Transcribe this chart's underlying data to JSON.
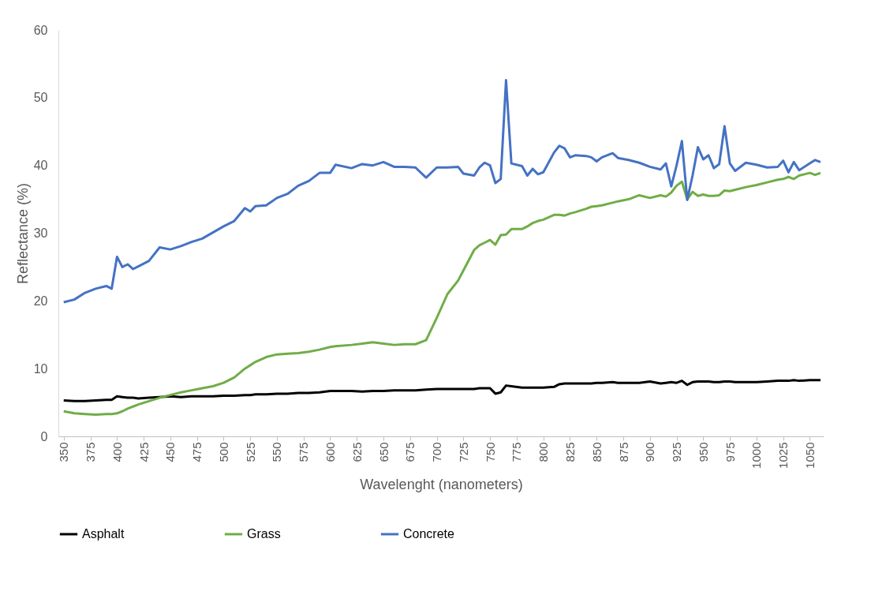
{
  "chart_data": {
    "type": "line",
    "xlabel": "Wavelenght (nanometers)",
    "ylabel": "Reflectance (%)",
    "x": [
      350,
      360,
      370,
      380,
      390,
      395,
      400,
      405,
      410,
      415,
      420,
      430,
      440,
      450,
      460,
      470,
      480,
      490,
      500,
      510,
      520,
      525,
      530,
      540,
      550,
      560,
      570,
      580,
      590,
      600,
      605,
      620,
      630,
      640,
      650,
      660,
      670,
      680,
      690,
      700,
      710,
      720,
      725,
      735,
      740,
      745,
      750,
      755,
      760,
      765,
      770,
      780,
      785,
      790,
      795,
      800,
      810,
      815,
      820,
      825,
      830,
      840,
      845,
      850,
      855,
      865,
      870,
      880,
      890,
      900,
      910,
      915,
      920,
      925,
      930,
      935,
      940,
      945,
      950,
      955,
      960,
      965,
      970,
      975,
      980,
      990,
      1000,
      1010,
      1020,
      1025,
      1030,
      1035,
      1040,
      1050,
      1055,
      1060
    ],
    "series": [
      {
        "name": "Asphalt",
        "color": "#000000",
        "values": [
          5.3,
          5.2,
          5.2,
          5.3,
          5.4,
          5.4,
          5.9,
          5.8,
          5.7,
          5.7,
          5.6,
          5.7,
          5.8,
          5.9,
          5.8,
          5.9,
          5.9,
          5.9,
          6,
          6,
          6.1,
          6.1,
          6.2,
          6.2,
          6.3,
          6.3,
          6.4,
          6.4,
          6.5,
          6.7,
          6.7,
          6.7,
          6.6,
          6.7,
          6.7,
          6.8,
          6.8,
          6.8,
          6.9,
          7,
          7,
          7,
          7,
          7,
          7.1,
          7.1,
          7.1,
          6.3,
          6.5,
          7.5,
          7.4,
          7.2,
          7.2,
          7.2,
          7.2,
          7.2,
          7.3,
          7.7,
          7.8,
          7.8,
          7.8,
          7.8,
          7.8,
          7.9,
          7.9,
          8,
          7.9,
          7.9,
          7.9,
          8.1,
          7.8,
          7.9,
          8,
          7.9,
          8.2,
          7.6,
          8,
          8.1,
          8.1,
          8.1,
          8,
          8,
          8.1,
          8.1,
          8,
          8,
          8,
          8.1,
          8.2,
          8.2,
          8.2,
          8.3,
          8.2,
          8.3,
          8.3,
          8.3
        ]
      },
      {
        "name": "Grass",
        "color": "#70ad47",
        "values": [
          3.7,
          3.4,
          3.3,
          3.2,
          3.3,
          3.3,
          3.4,
          3.7,
          4.1,
          4.4,
          4.7,
          5.2,
          5.7,
          6.1,
          6.5,
          6.8,
          7.1,
          7.4,
          7.9,
          8.7,
          10,
          10.5,
          11,
          11.7,
          12.1,
          12.2,
          12.3,
          12.5,
          12.8,
          13.2,
          13.3,
          13.5,
          13.7,
          13.9,
          13.7,
          13.5,
          13.6,
          13.6,
          14.2,
          17.5,
          21,
          23,
          24.5,
          27.5,
          28.2,
          28.6,
          29,
          28.3,
          29.7,
          29.8,
          30.6,
          30.6,
          31,
          31.5,
          31.8,
          32,
          32.7,
          32.7,
          32.6,
          32.9,
          33.1,
          33.6,
          33.9,
          34,
          34.1,
          34.5,
          34.7,
          35,
          35.6,
          35.2,
          35.6,
          35.4,
          36,
          37,
          37.6,
          35,
          36.1,
          35.5,
          35.7,
          35.5,
          35.5,
          35.6,
          36.3,
          36.2,
          36.4,
          36.8,
          37.1,
          37.5,
          37.9,
          38,
          38.3,
          38,
          38.5,
          38.9,
          38.6,
          38.9
        ]
      },
      {
        "name": "Concrete",
        "color": "#4472c4",
        "values": [
          19.8,
          20.2,
          21.2,
          21.8,
          22.2,
          21.8,
          26.5,
          25,
          25.4,
          24.7,
          25.1,
          25.9,
          27.9,
          27.6,
          28.1,
          28.7,
          29.2,
          30.1,
          31,
          31.8,
          33.7,
          33.2,
          34,
          34.1,
          35.2,
          35.8,
          37,
          37.7,
          38.9,
          38.9,
          40.1,
          39.6,
          40.2,
          40,
          40.5,
          39.8,
          39.8,
          39.7,
          38.2,
          39.7,
          39.7,
          39.8,
          38.8,
          38.5,
          39.7,
          40.4,
          40,
          37.4,
          38,
          52.6,
          40.3,
          39.9,
          38.5,
          39.5,
          38.7,
          39,
          41.9,
          42.9,
          42.5,
          41.2,
          41.5,
          41.4,
          41.2,
          40.6,
          41.2,
          41.8,
          41.1,
          40.8,
          40.4,
          39.8,
          39.4,
          40.3,
          36.9,
          40,
          43.6,
          34.9,
          38.5,
          42.7,
          40.9,
          41.5,
          39.6,
          40.2,
          45.8,
          40.3,
          39.2,
          40.4,
          40.1,
          39.7,
          39.8,
          40.7,
          39,
          40.5,
          39.3,
          40.3,
          40.8,
          40.5
        ]
      }
    ],
    "xlim": [
      345,
      1063
    ],
    "xticks": [
      350,
      375,
      400,
      425,
      450,
      475,
      500,
      525,
      550,
      575,
      600,
      625,
      650,
      675,
      700,
      725,
      750,
      775,
      800,
      825,
      850,
      875,
      900,
      925,
      950,
      975,
      1000,
      1025,
      1050
    ],
    "ylim": [
      0,
      60
    ],
    "yticks": [
      0,
      10,
      20,
      30,
      40,
      50,
      60
    ],
    "grid": false,
    "legend": "bottom",
    "marker": "none",
    "line_style": "solid"
  }
}
